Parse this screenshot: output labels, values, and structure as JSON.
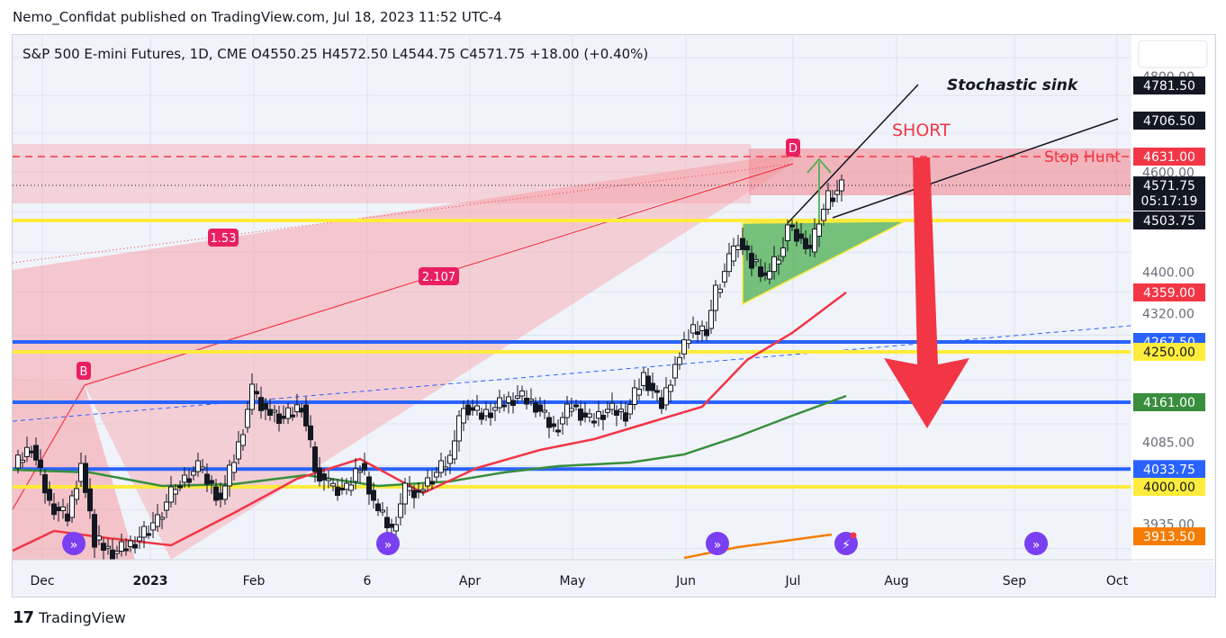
{
  "header": {
    "published": "Nemo_Confidat published on TradingView.com, Jul 18, 2023 11:52 UTC-4"
  },
  "footer": {
    "brand": "TradingView"
  },
  "colors": {
    "up": "#ffffff",
    "down": "#131722",
    "red": "#f23645",
    "yellow": "#ffeb3b",
    "blue": "#2962ff",
    "green": "#388e3c",
    "orange": "#f57c00",
    "zoneRed": "#f7a1a8",
    "triangle": "#4caf50"
  },
  "chart_data": {
    "type": "candlestick",
    "symbol_line": {
      "symbol": "S&P 500 E-mini Futures, 1D, CME",
      "o_label": "O",
      "o": "4550.25",
      "h_label": "H",
      "h": "4572.50",
      "l_label": "L",
      "l": "4544.75",
      "c_label": "C",
      "c": "4571.75",
      "change": "+18.00 (+0.40%)"
    },
    "x_ticks": [
      "Dec",
      "2023",
      "Feb",
      "6",
      "Apr",
      "May",
      "Jun",
      "Jul",
      "Aug",
      "Sep",
      "Oct"
    ],
    "y_ticks": [
      "4800.00",
      "4600.00",
      "4400.00",
      "4320.00",
      "4085.00",
      "3935.00"
    ],
    "y_range": [
      3850,
      4840
    ],
    "price_labels": [
      {
        "price": 4781.5,
        "text": "4781.50",
        "bg": "#131722",
        "fg": "#ffffff"
      },
      {
        "price": 4706.5,
        "text": "4706.50",
        "bg": "#131722",
        "fg": "#ffffff"
      },
      {
        "price": 4631.0,
        "text": "4631.00",
        "bg": "#f23645",
        "fg": "#ffffff"
      },
      {
        "price": 4571.75,
        "text": "4571.75",
        "bg": "#131722",
        "fg": "#ffffff",
        "countdown": "05:17:19"
      },
      {
        "price": 4503.75,
        "text": "4503.75",
        "bg": "#131722",
        "fg": "#ffffff"
      },
      {
        "price": 4359.0,
        "text": "4359.00",
        "bg": "#f23645",
        "fg": "#ffffff"
      },
      {
        "price": 4267.5,
        "text": "4267.50",
        "bg": "#2962ff",
        "fg": "#ffffff"
      },
      {
        "price": 4250.0,
        "text": "4250.00",
        "bg": "#ffeb3b",
        "fg": "#131722"
      },
      {
        "price": 4161.0,
        "text": "4161.00",
        "bg": "#388e3c",
        "fg": "#ffffff"
      },
      {
        "price": 4033.75,
        "text": "4033.75",
        "bg": "#2962ff",
        "fg": "#ffffff"
      },
      {
        "price": 4000.0,
        "text": "4000.00",
        "bg": "#ffeb3b",
        "fg": "#131722"
      },
      {
        "price": 3913.5,
        "text": "3913.50",
        "bg": "#f57c00",
        "fg": "#ffffff"
      }
    ],
    "horizontal_lines": [
      {
        "price": 4503.75,
        "color": "#ffeb3b"
      },
      {
        "price": 4267.5,
        "color": "#2962ff"
      },
      {
        "price": 4250.0,
        "color": "#ffeb3b"
      },
      {
        "price": 4161.0,
        "color": "#2962ff"
      },
      {
        "price": 4033.75,
        "color": "#2962ff"
      },
      {
        "price": 4000.0,
        "color": "#ffeb3b"
      }
    ],
    "annotations": {
      "stochastic": "Stochastic sink",
      "short": "SHORT",
      "stop_hunt": "Stop Hunt",
      "ratio1": "1.53",
      "ratio2": "2.107",
      "point_b": "B",
      "point_d": "D"
    }
  }
}
